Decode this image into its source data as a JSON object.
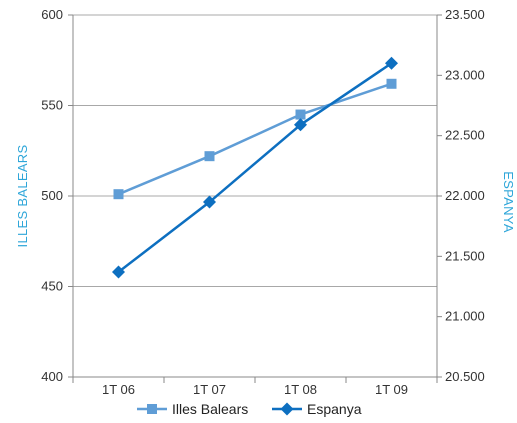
{
  "chart_data": {
    "type": "line",
    "categories": [
      "1T 06",
      "1T 07",
      "1T 08",
      "1T 09"
    ],
    "y_left": {
      "label": "ILLES BALEARS",
      "ylim": [
        400,
        600
      ],
      "ticks": [
        400,
        450,
        500,
        550,
        600
      ],
      "tick_labels": [
        "400",
        "450",
        "500",
        "550",
        "600"
      ]
    },
    "y_right": {
      "label": "ESPANYA",
      "ylim": [
        20500,
        23500
      ],
      "ticks": [
        20500,
        21000,
        21500,
        22000,
        22500,
        23000,
        23500
      ],
      "tick_labels": [
        "20.500",
        "21.000",
        "21.500",
        "22.000",
        "22.500",
        "23.000",
        "23.500"
      ]
    },
    "series": [
      {
        "name": "Illes Balears",
        "axis": "left",
        "marker": "square",
        "color": "#5f9dd6",
        "values": [
          501,
          522,
          545,
          562
        ]
      },
      {
        "name": "Espanya",
        "axis": "right",
        "marker": "diamond",
        "color": "#0d6fc0",
        "values": [
          21370,
          21950,
          22590,
          23100
        ]
      }
    ],
    "grid": "horizontal",
    "legend_position": "bottom"
  }
}
